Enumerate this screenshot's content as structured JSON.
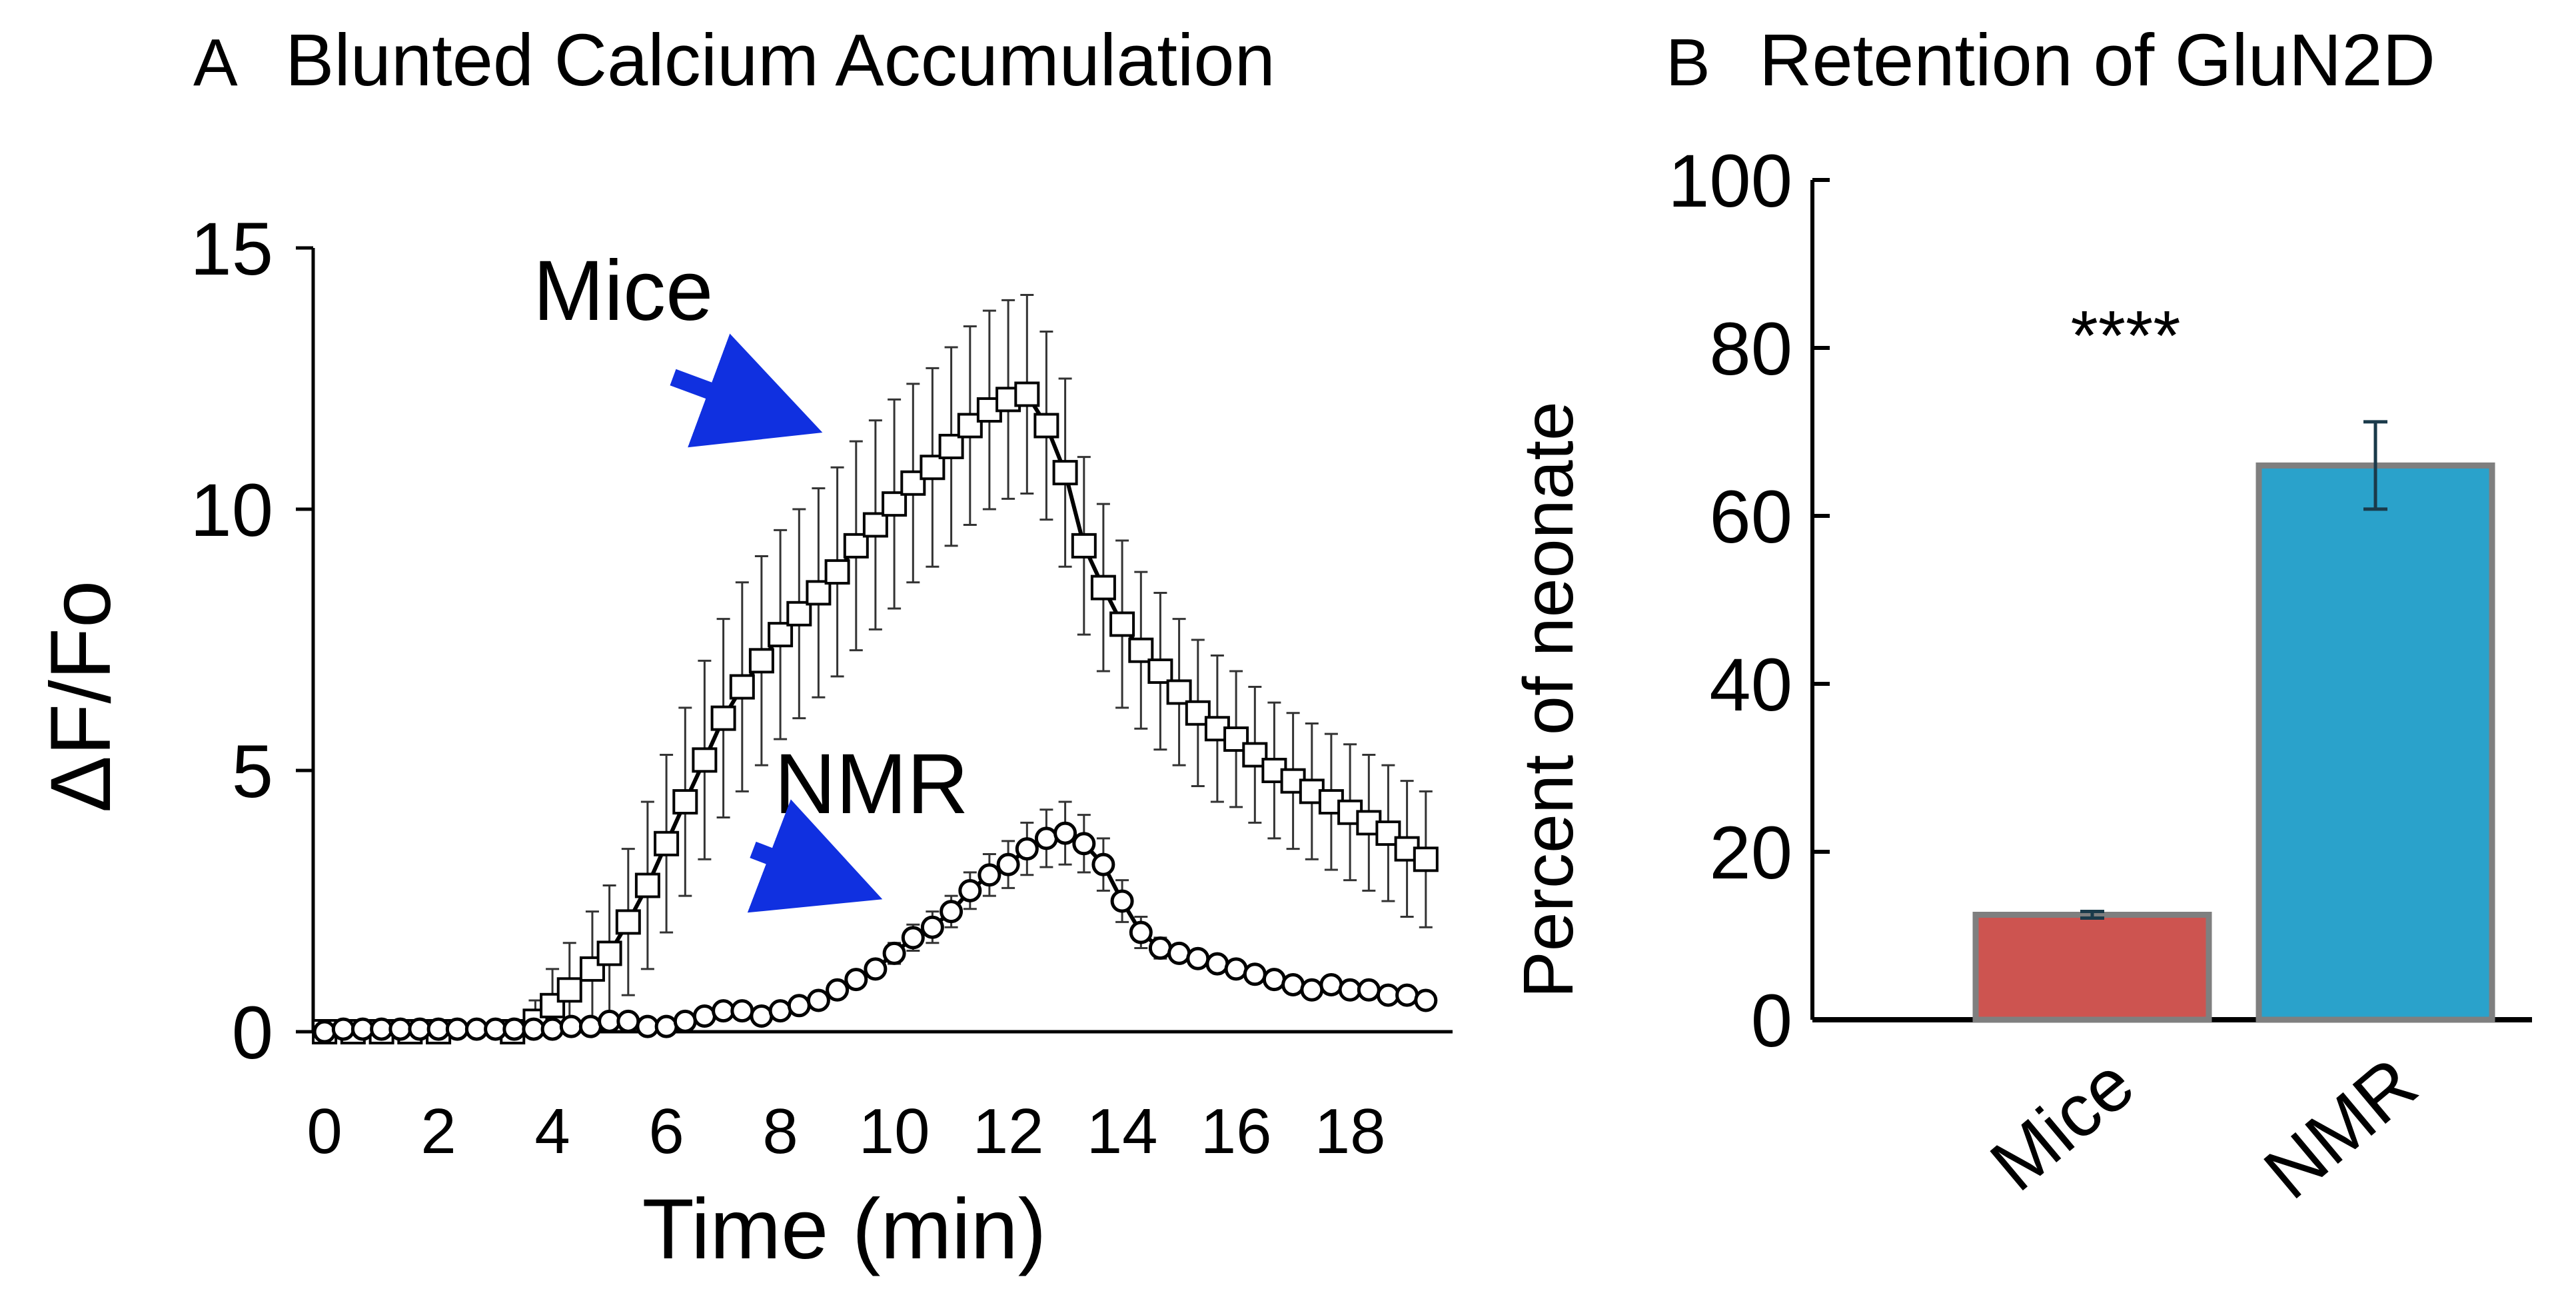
{
  "chart_data": [
    {
      "panel": "A",
      "title": "Blunted Calcium Accumulation",
      "type": "scatter",
      "xlabel": "Time (min)",
      "ylabel": "ΔF/Fo",
      "xlim": [
        -0.2,
        19.8
      ],
      "ylim": [
        0,
        15
      ],
      "xticks": [
        0,
        2,
        4,
        6,
        8,
        10,
        12,
        14,
        16,
        18
      ],
      "yticks": [
        0,
        5,
        10,
        15
      ],
      "grid": false,
      "colors": {
        "arrow": "#1030e0"
      },
      "series": [
        {
          "name": "Mice",
          "marker": "square",
          "x": [
            0,
            0.5,
            1,
            1.5,
            2,
            3.3,
            3.7,
            4,
            4.3,
            4.7,
            5,
            5.33,
            5.67,
            6,
            6.33,
            6.67,
            7,
            7.33,
            7.67,
            8,
            8.33,
            8.67,
            9,
            9.33,
            9.67,
            10,
            10.33,
            10.67,
            11,
            11.33,
            11.67,
            12,
            12.33,
            12.67,
            13,
            13.33,
            13.67,
            14,
            14.33,
            14.67,
            15,
            15.33,
            15.67,
            16,
            16.33,
            16.67,
            17,
            17.33,
            17.67,
            18,
            18.33,
            18.67,
            19,
            19.33
          ],
          "y": [
            0.0,
            0.0,
            0.0,
            0.0,
            0.0,
            0.0,
            0.2,
            0.5,
            0.8,
            1.2,
            1.5,
            2.1,
            2.8,
            3.6,
            4.4,
            5.2,
            6.0,
            6.6,
            7.1,
            7.6,
            8.0,
            8.4,
            8.8,
            9.3,
            9.7,
            10.1,
            10.5,
            10.8,
            11.2,
            11.6,
            11.9,
            12.1,
            12.2,
            11.6,
            10.7,
            9.3,
            8.5,
            7.8,
            7.3,
            6.9,
            6.5,
            6.1,
            5.8,
            5.6,
            5.3,
            5.0,
            4.8,
            4.6,
            4.4,
            4.2,
            4.0,
            3.8,
            3.5,
            3.3
          ],
          "err": [
            0.1,
            0.1,
            0.1,
            0.1,
            0.1,
            0.1,
            0.4,
            0.7,
            0.9,
            1.1,
            1.3,
            1.4,
            1.6,
            1.7,
            1.8,
            1.9,
            1.9,
            2.0,
            2.0,
            2.0,
            2.0,
            2.0,
            2.0,
            2.0,
            2.0,
            2.0,
            1.9,
            1.9,
            1.9,
            1.9,
            1.9,
            1.9,
            1.9,
            1.8,
            1.8,
            1.7,
            1.6,
            1.6,
            1.5,
            1.5,
            1.4,
            1.4,
            1.4,
            1.3,
            1.3,
            1.3,
            1.3,
            1.3,
            1.3,
            1.3,
            1.3,
            1.3,
            1.3,
            1.3
          ]
        },
        {
          "name": "NMR",
          "marker": "circle",
          "x": [
            0,
            0.33,
            0.67,
            1,
            1.33,
            1.67,
            2,
            2.33,
            2.67,
            3,
            3.33,
            3.67,
            4,
            4.33,
            4.67,
            5,
            5.33,
            5.67,
            6,
            6.33,
            6.67,
            7,
            7.33,
            7.67,
            8,
            8.33,
            8.67,
            9,
            9.33,
            9.67,
            10,
            10.33,
            10.67,
            11,
            11.33,
            11.67,
            12,
            12.33,
            12.67,
            13,
            13.33,
            13.67,
            14,
            14.33,
            14.67,
            15,
            15.33,
            15.67,
            16,
            16.33,
            16.67,
            17,
            17.33,
            17.67,
            18,
            18.33,
            18.67,
            19,
            19.33
          ],
          "y": [
            0.0,
            0.05,
            0.05,
            0.05,
            0.05,
            0.05,
            0.05,
            0.05,
            0.05,
            0.05,
            0.05,
            0.05,
            0.05,
            0.1,
            0.1,
            0.2,
            0.2,
            0.1,
            0.1,
            0.2,
            0.3,
            0.4,
            0.4,
            0.3,
            0.4,
            0.5,
            0.6,
            0.8,
            1.0,
            1.2,
            1.5,
            1.8,
            2.0,
            2.3,
            2.7,
            3.0,
            3.2,
            3.5,
            3.7,
            3.8,
            3.6,
            3.2,
            2.5,
            1.9,
            1.6,
            1.5,
            1.4,
            1.3,
            1.2,
            1.1,
            1.0,
            0.9,
            0.8,
            0.9,
            0.8,
            0.8,
            0.7,
            0.7,
            0.6
          ],
          "err": [
            0.05,
            0.05,
            0.05,
            0.05,
            0.05,
            0.05,
            0.05,
            0.05,
            0.05,
            0.05,
            0.05,
            0.05,
            0.05,
            0.05,
            0.05,
            0.05,
            0.05,
            0.05,
            0.05,
            0.05,
            0.05,
            0.05,
            0.05,
            0.05,
            0.05,
            0.05,
            0.05,
            0.1,
            0.1,
            0.15,
            0.2,
            0.25,
            0.3,
            0.3,
            0.35,
            0.4,
            0.45,
            0.5,
            0.55,
            0.6,
            0.55,
            0.5,
            0.4,
            0.3,
            0.2,
            0.15,
            0.1,
            0.1,
            0.1,
            0.1,
            0.1,
            0.1,
            0.1,
            0.1,
            0.1,
            0.1,
            0.1,
            0.1,
            0.1
          ]
        }
      ],
      "annotations": [
        "Mice",
        "NMR"
      ]
    },
    {
      "panel": "B",
      "title": "Retention of GluN2D",
      "type": "bar",
      "xlabel": "",
      "ylabel": "Percent of neonate",
      "ylim": [
        0,
        100
      ],
      "yticks": [
        0,
        20,
        40,
        60,
        80,
        100
      ],
      "grid": false,
      "categories": [
        "Mice",
        "NMR"
      ],
      "values": [
        12.5,
        66
      ],
      "err": [
        0.4,
        5.2
      ],
      "colors": [
        "#cd5450",
        "#2aa2cb"
      ],
      "annotations": [
        "****"
      ]
    }
  ]
}
